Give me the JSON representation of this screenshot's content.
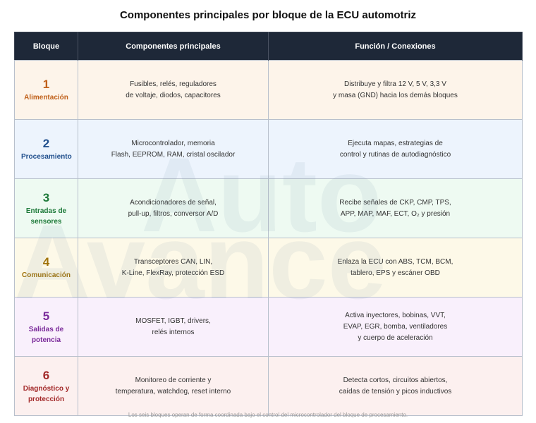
{
  "title": "Componentes principales por bloque de la ECU automotriz",
  "watermark": [
    "Auto",
    "Avance"
  ],
  "table": {
    "headers": [
      "Bloque",
      "Componentes principales",
      "Función / Conexiones"
    ],
    "rows": [
      {
        "number": 1,
        "name": "Alimentación",
        "components": [
          "Fusibles, relés, reguladores",
          "de voltaje, diodos, capacitores"
        ],
        "function": [
          "Distribuye y filtra 12 V, 5 V, 3,3 V",
          "y masa (GND) hacia los demás bloques"
        ]
      },
      {
        "number": 2,
        "name": "Procesamiento",
        "components": [
          "Microcontrolador, memoria",
          "Flash, EEPROM, RAM, cristal oscilador"
        ],
        "function": [
          "Ejecuta mapas, estrategias de",
          "control y rutinas de autodiagnóstico"
        ]
      },
      {
        "number": 3,
        "name": "Entradas de sensores",
        "components": [
          "Acondicionadores de señal,",
          "pull-up, filtros, conversor A/D"
        ],
        "function": [
          "Recibe señales de CKP, CMP, TPS,",
          "APP, MAP, MAF, ECT, O₂ y presión"
        ]
      },
      {
        "number": 4,
        "name": "Comunicación",
        "components": [
          "Transceptores CAN, LIN,",
          "K-Line, FlexRay, protección ESD"
        ],
        "function": [
          "Enlaza la ECU con ABS, TCM, BCM,",
          "tablero, EPS y escáner OBD"
        ]
      },
      {
        "number": 5,
        "name": "Salidas de potencia",
        "components": [
          "MOSFET, IGBT, drivers,",
          "relés internos"
        ],
        "function": [
          "Activa inyectores, bobinas, VVT,",
          "EVAP, EGR, bomba, ventiladores",
          "y cuerpo de aceleración"
        ]
      },
      {
        "number": 6,
        "name": "Diagnóstico y protección",
        "components": [
          "Monitoreo de corriente y",
          "temperatura, watchdog, reset interno"
        ],
        "function": [
          "Detecta cortos, circuitos abiertos,",
          "caídas de tensión y picos inductivos"
        ]
      }
    ]
  },
  "footnote": "Los seis bloques operan de forma coordinada bajo el control del microcontrolador del bloque de procesamiento."
}
